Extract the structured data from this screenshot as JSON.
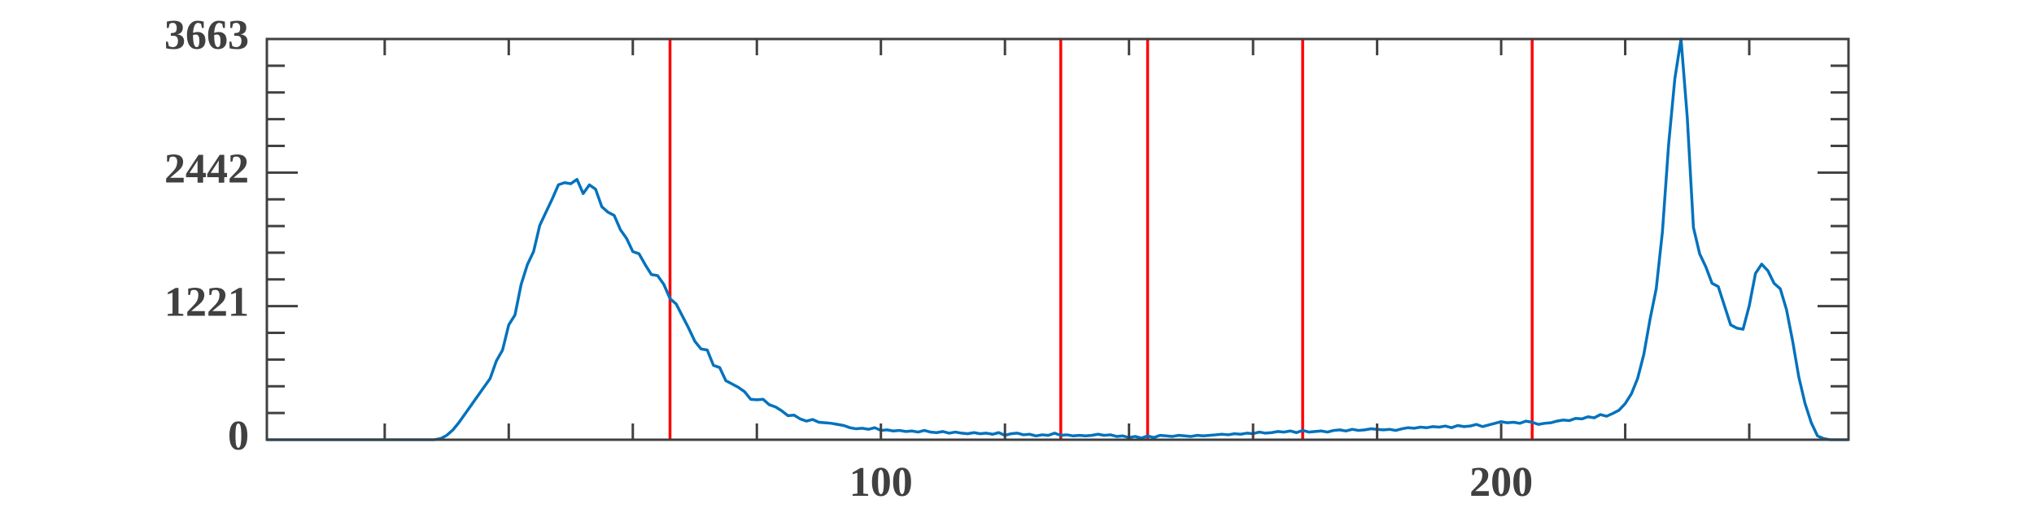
{
  "chart_data": {
    "type": "line",
    "x": [
      1,
      2,
      3,
      4,
      5,
      6,
      7,
      8,
      9,
      10,
      11,
      12,
      13,
      14,
      15,
      16,
      17,
      18,
      19,
      20,
      21,
      22,
      23,
      24,
      25,
      26,
      27,
      28,
      29,
      30,
      31,
      32,
      33,
      34,
      35,
      36,
      37,
      38,
      39,
      40,
      41,
      42,
      43,
      44,
      45,
      46,
      47,
      48,
      49,
      50,
      51,
      52,
      53,
      54,
      55,
      56,
      57,
      58,
      59,
      60,
      61,
      62,
      63,
      64,
      65,
      66,
      67,
      68,
      69,
      70,
      71,
      72,
      73,
      74,
      75,
      76,
      77,
      78,
      79,
      80,
      81,
      82,
      83,
      84,
      85,
      86,
      87,
      88,
      89,
      90,
      91,
      92,
      93,
      94,
      95,
      96,
      97,
      98,
      99,
      100,
      101,
      102,
      103,
      104,
      105,
      106,
      107,
      108,
      109,
      110,
      111,
      112,
      113,
      114,
      115,
      116,
      117,
      118,
      119,
      120,
      121,
      122,
      123,
      124,
      125,
      126,
      127,
      128,
      129,
      130,
      131,
      132,
      133,
      134,
      135,
      136,
      137,
      138,
      139,
      140,
      141,
      142,
      143,
      144,
      145,
      146,
      147,
      148,
      149,
      150,
      151,
      152,
      153,
      154,
      155,
      156,
      157,
      158,
      159,
      160,
      161,
      162,
      163,
      164,
      165,
      166,
      167,
      168,
      169,
      170,
      171,
      172,
      173,
      174,
      175,
      176,
      177,
      178,
      179,
      180,
      181,
      182,
      183,
      184,
      185,
      186,
      187,
      188,
      189,
      190,
      191,
      192,
      193,
      194,
      195,
      196,
      197,
      198,
      199,
      200,
      201,
      202,
      203,
      204,
      205,
      206,
      207,
      208,
      209,
      210,
      211,
      212,
      213,
      214,
      215,
      216,
      217,
      218,
      219,
      220,
      221,
      222,
      223,
      224,
      225,
      226,
      227,
      228,
      229,
      230,
      231,
      232,
      233,
      234,
      235,
      236,
      237,
      238,
      239,
      240,
      241,
      242,
      243,
      244,
      245,
      246,
      247,
      248,
      249,
      250,
      251,
      252,
      253,
      254,
      255,
      256
    ],
    "values": [
      0,
      0,
      0,
      0,
      0,
      0,
      0,
      0,
      0,
      0,
      0,
      0,
      0,
      0,
      0,
      0,
      0,
      0,
      0,
      0,
      0,
      0,
      0,
      0,
      0,
      0,
      0,
      0,
      10,
      40,
      90,
      160,
      240,
      320,
      400,
      480,
      560,
      720,
      820,
      1050,
      1140,
      1420,
      1600,
      1720,
      1960,
      2080,
      2200,
      2330,
      2350,
      2340,
      2380,
      2250,
      2330,
      2290,
      2130,
      2080,
      2050,
      1920,
      1840,
      1720,
      1700,
      1600,
      1510,
      1500,
      1420,
      1290,
      1240,
      1130,
      1020,
      900,
      830,
      820,
      680,
      660,
      540,
      510,
      480,
      440,
      370,
      365,
      370,
      320,
      300,
      265,
      220,
      225,
      190,
      170,
      185,
      160,
      155,
      150,
      140,
      130,
      110,
      100,
      105,
      95,
      110,
      85,
      90,
      80,
      85,
      75,
      80,
      70,
      85,
      70,
      65,
      75,
      60,
      70,
      60,
      55,
      65,
      55,
      60,
      50,
      65,
      40,
      55,
      60,
      45,
      50,
      35,
      45,
      40,
      60,
      40,
      45,
      35,
      40,
      35,
      40,
      50,
      40,
      45,
      30,
      35,
      20,
      30,
      15,
      35,
      20,
      40,
      35,
      30,
      40,
      35,
      30,
      40,
      35,
      40,
      45,
      50,
      45,
      55,
      50,
      60,
      55,
      70,
      60,
      65,
      75,
      70,
      80,
      65,
      85,
      70,
      75,
      80,
      70,
      85,
      90,
      80,
      95,
      85,
      90,
      100,
      95,
      90,
      95,
      85,
      100,
      110,
      105,
      115,
      110,
      120,
      115,
      125,
      110,
      130,
      120,
      125,
      140,
      120,
      135,
      150,
      165,
      155,
      160,
      150,
      170,
      160,
      140,
      150,
      155,
      170,
      180,
      175,
      195,
      190,
      210,
      200,
      230,
      215,
      240,
      270,
      330,
      420,
      560,
      780,
      1100,
      1380,
      1900,
      2700,
      3300,
      3663,
      2950,
      1940,
      1700,
      1580,
      1430,
      1400,
      1225,
      1050,
      1020,
      1010,
      1225,
      1520,
      1605,
      1545,
      1430,
      1380,
      1190,
      900,
      570,
      330,
      155,
      35,
      10,
      0,
      0,
      0,
      0
    ],
    "color": "#0072bd",
    "thresholds": [
      66,
      129,
      143,
      168,
      205
    ],
    "threshold_color": "#ff0000",
    "xlim": [
      1,
      256
    ],
    "xticks": [
      100,
      200
    ],
    "x_minor_ticks": [
      20,
      40,
      60,
      80,
      120,
      140,
      160,
      180,
      220,
      240
    ],
    "ylim": [
      0,
      3663
    ],
    "yticks": [
      0,
      1221,
      2442,
      3663
    ],
    "y_minor_ticks": [
      244.2,
      488.4,
      732.6,
      976.8,
      1465.2,
      1709.4,
      1953.6,
      2197.8,
      2686.2,
      2930.4,
      3174.6,
      3418.8
    ]
  }
}
